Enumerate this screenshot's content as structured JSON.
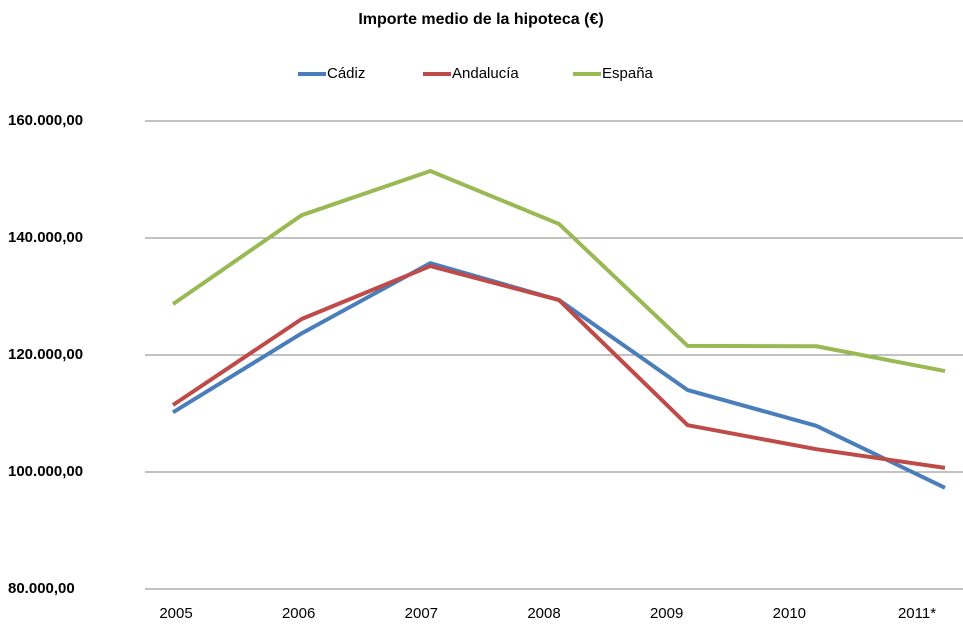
{
  "chart_data": {
    "type": "line",
    "title": "Importe medio de la hipoteca (€)",
    "categories": [
      "2005",
      "2006",
      "2007",
      "2008",
      "2009",
      "2010",
      "2011*"
    ],
    "series": [
      {
        "name": "Cádiz",
        "color": "#4a7ebb",
        "values": [
          110200,
          123700,
          135700,
          129400,
          114000,
          107900,
          97300
        ]
      },
      {
        "name": "Andalucía",
        "color": "#be4b48",
        "values": [
          111450,
          126150,
          135200,
          129400,
          108000,
          103900,
          100700
        ]
      },
      {
        "name": "España",
        "color": "#98b954",
        "values": [
          128700,
          143900,
          151450,
          142400,
          121550,
          121500,
          117250
        ]
      }
    ],
    "ylim": [
      80000,
      160000
    ],
    "yticks": [
      {
        "value": 80000,
        "label": "80.000,00"
      },
      {
        "value": 100000,
        "label": "100.000,00"
      },
      {
        "value": 120000,
        "label": "120.000,00"
      },
      {
        "value": 140000,
        "label": "140.000,00"
      },
      {
        "value": 160000,
        "label": "160.000,00"
      }
    ],
    "grid": true,
    "legend": "top"
  }
}
